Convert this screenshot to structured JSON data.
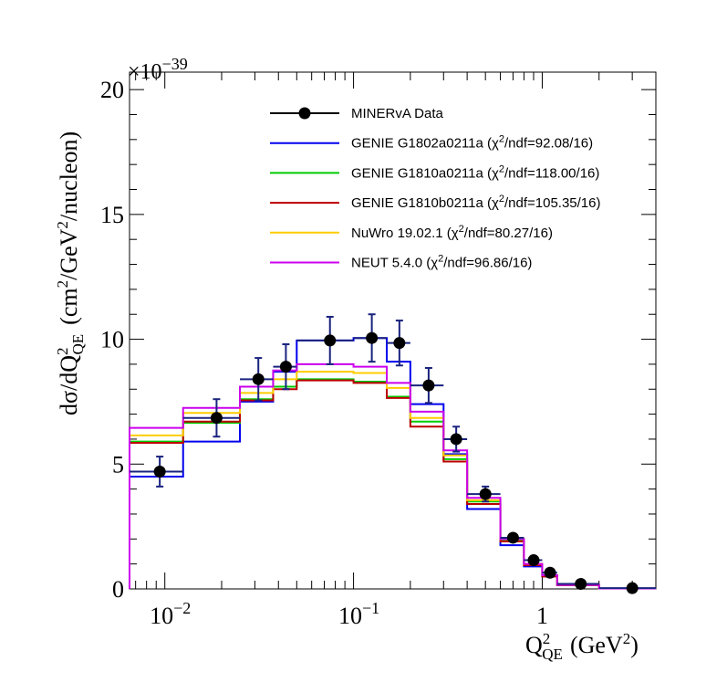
{
  "chart_data": {
    "type": "histogram-step-with-points",
    "xscale": "log",
    "xlim": [
      0.0065,
      4.0
    ],
    "ylim": [
      0,
      20.7
    ],
    "y_scale_factor_label": "×10",
    "y_scale_exponent": "−39",
    "ylabel": {
      "prefix": "dσ/dQ",
      "sup": "2",
      "sub": "QE",
      "units": "(cm",
      "units_sup1": "2",
      "units_mid": "/GeV",
      "units_sup2": "2",
      "units_end": "/nucleon)"
    },
    "xlabel": {
      "main": "Q",
      "sup": "2",
      "sub": "QE",
      "units": "(GeV",
      "units_sup": "2",
      "units_end": ")"
    },
    "y_ticks": [
      {
        "value": 0,
        "label": "0"
      },
      {
        "value": 5,
        "label": "5"
      },
      {
        "value": 10,
        "label": "10"
      },
      {
        "value": 15,
        "label": "15"
      },
      {
        "value": 20,
        "label": "20"
      }
    ],
    "x_major_ticks": [
      {
        "value": 0.01,
        "base": "10",
        "exp": "−2"
      },
      {
        "value": 0.1,
        "base": "10",
        "exp": "−1"
      },
      {
        "value": 1,
        "base": "1",
        "exp": ""
      }
    ],
    "bin_edges": [
      0.0065,
      0.0125,
      0.025,
      0.0375,
      0.05,
      0.1,
      0.15,
      0.2,
      0.3,
      0.4,
      0.6,
      0.8,
      1.0,
      1.2,
      2.0,
      4.0
    ],
    "data": {
      "name": "MINERvA Data",
      "color": "#000000",
      "err_color": "#1a237e",
      "points": [
        {
          "x": 0.0094,
          "y": 4.7,
          "err": 0.6
        },
        {
          "x": 0.0188,
          "y": 6.85,
          "err": 0.75
        },
        {
          "x": 0.0313,
          "y": 8.4,
          "err": 0.85
        },
        {
          "x": 0.0438,
          "y": 8.9,
          "err": 0.9
        },
        {
          "x": 0.075,
          "y": 9.95,
          "err": 0.95
        },
        {
          "x": 0.125,
          "y": 10.05,
          "err": 0.95
        },
        {
          "x": 0.175,
          "y": 9.85,
          "err": 0.9
        },
        {
          "x": 0.25,
          "y": 8.15,
          "err": 0.7
        },
        {
          "x": 0.35,
          "y": 6.0,
          "err": 0.5
        },
        {
          "x": 0.5,
          "y": 3.8,
          "err": 0.3
        },
        {
          "x": 0.7,
          "y": 2.05,
          "err": 0.15
        },
        {
          "x": 0.9,
          "y": 1.15,
          "err": 0.1
        },
        {
          "x": 1.1,
          "y": 0.65,
          "err": 0.06
        },
        {
          "x": 1.6,
          "y": 0.2,
          "err": 0.03
        },
        {
          "x": 3.0,
          "y": 0.03,
          "err": 0.01
        }
      ]
    },
    "series": [
      {
        "name": "GENIE G1802a0211a (χ²/ndf=92.08/16)",
        "color": "#0000ee",
        "values": [
          4.5,
          5.9,
          7.5,
          8.7,
          9.95,
          10.05,
          9.1,
          7.4,
          5.4,
          3.2,
          1.75,
          0.9,
          0.5,
          0.15,
          0.02
        ]
      },
      {
        "name": "GENIE G1810a0211a (χ²/ndf=118.00/16)",
        "color": "#00cc00",
        "values": [
          5.9,
          6.65,
          7.6,
          8.1,
          8.4,
          8.3,
          7.7,
          6.7,
          5.2,
          3.5,
          1.95,
          1.0,
          0.55,
          0.16,
          0.02
        ]
      },
      {
        "name": "GENIE G1810b0211a (χ²/ndf=105.35/16)",
        "color": "#bb0000",
        "values": [
          5.85,
          6.7,
          7.55,
          8.0,
          8.35,
          8.25,
          7.65,
          6.5,
          5.1,
          3.4,
          1.9,
          0.95,
          0.5,
          0.15,
          0.02
        ]
      },
      {
        "name": "NuWro 19.02.1 (χ²/ndf=80.27/16)",
        "color": "#ffcc00",
        "values": [
          6.15,
          7.05,
          7.85,
          8.4,
          8.7,
          8.65,
          8.05,
          6.85,
          5.35,
          3.55,
          2.0,
          1.0,
          0.55,
          0.16,
          0.02
        ]
      },
      {
        "name": "NEUT 5.4.0 (χ²/ndf=96.86/16)",
        "color": "#cc00ee",
        "values": [
          6.45,
          7.25,
          8.1,
          8.75,
          9.0,
          8.9,
          8.25,
          7.1,
          5.55,
          3.65,
          2.0,
          1.0,
          0.55,
          0.16,
          0.02
        ]
      }
    ],
    "legend": {
      "position": "top-right",
      "entries": [
        {
          "name": "MINERvA Data",
          "color": "#000000",
          "marker": true,
          "label_main": "MINERvA Data",
          "label_chi": ""
        },
        {
          "name": "GENIE G1802a0211a",
          "color": "#0000ee",
          "marker": false,
          "label_main": "GENIE G1802a0211a (χ",
          "label_sup": "2",
          "label_end": "/ndf=92.08/16)"
        },
        {
          "name": "GENIE G1810a0211a",
          "color": "#00cc00",
          "marker": false,
          "label_main": "GENIE G1810a0211a (χ",
          "label_sup": "2",
          "label_end": "/ndf=118.00/16)"
        },
        {
          "name": "GENIE G1810b0211a",
          "color": "#bb0000",
          "marker": false,
          "label_main": "GENIE G1810b0211a (χ",
          "label_sup": "2",
          "label_end": "/ndf=105.35/16)"
        },
        {
          "name": "NuWro 19.02.1",
          "color": "#ffcc00",
          "marker": false,
          "label_main": "NuWro 19.02.1 (χ",
          "label_sup": "2",
          "label_end": "/ndf=80.27/16)"
        },
        {
          "name": "NEUT 5.4.0",
          "color": "#cc00ee",
          "marker": false,
          "label_main": "NEUT 5.4.0 (χ",
          "label_sup": "2",
          "label_end": "/ndf=96.86/16)"
        }
      ]
    }
  }
}
